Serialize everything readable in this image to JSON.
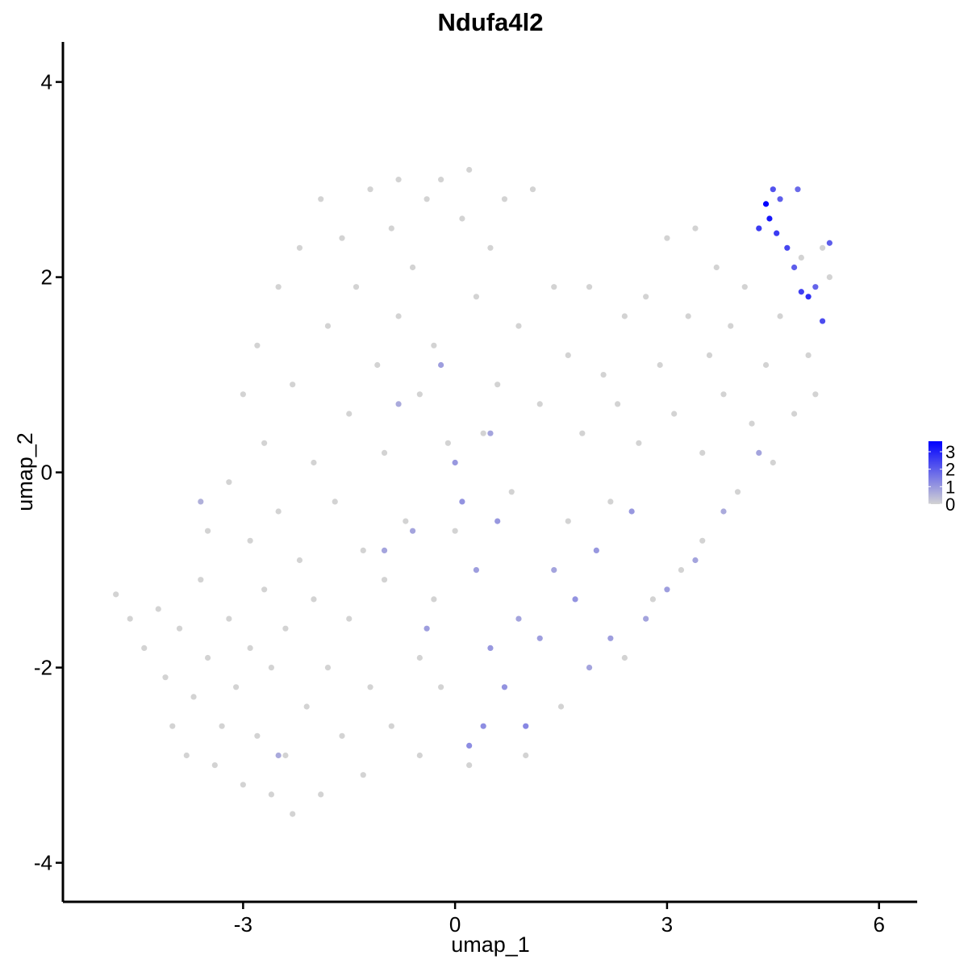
{
  "chart_data": {
    "type": "scatter",
    "title": "Ndufa4l2",
    "xlabel": "umap_1",
    "ylabel": "umap_2",
    "xlim": [
      -5.55,
      6.54
    ],
    "ylim": [
      -4.4,
      4.41
    ],
    "xticks": [
      -3,
      0,
      3,
      6
    ],
    "yticks": [
      -4,
      -2,
      0,
      2,
      4
    ],
    "colorbar": {
      "lim": [
        0,
        3.6
      ],
      "ticks": [
        0,
        1,
        2,
        3
      ],
      "low_color": "#d3d3d3",
      "high_color": "#0000ff"
    },
    "x": [
      -4.8,
      -4.6,
      -4.4,
      -4.2,
      -4.1,
      -4.0,
      -3.9,
      -3.8,
      -3.7,
      -3.6,
      -3.5,
      -3.5,
      -3.4,
      -3.3,
      -3.2,
      -3.2,
      -3.1,
      -3.0,
      -3.0,
      -2.9,
      -2.9,
      -2.8,
      -2.8,
      -2.7,
      -2.7,
      -2.6,
      -2.6,
      -2.5,
      -2.5,
      -2.4,
      -2.4,
      -2.3,
      -2.3,
      -2.2,
      -2.2,
      -2.1,
      -2.0,
      -2.0,
      -1.9,
      -1.9,
      -1.8,
      -1.8,
      -1.7,
      -1.6,
      -1.6,
      -1.5,
      -1.5,
      -1.4,
      -1.3,
      -1.3,
      -1.2,
      -1.2,
      -1.1,
      -1.0,
      -1.0,
      -0.9,
      -0.9,
      -0.8,
      -0.8,
      -0.7,
      -0.6,
      -0.5,
      -0.5,
      -0.4,
      -0.3,
      -0.2,
      -0.1,
      0.1,
      0.2,
      0.3,
      0.5,
      0.6,
      0.7,
      0.9,
      1.1,
      1.2,
      1.4,
      1.6,
      1.8,
      1.9,
      2.1,
      2.3,
      2.4,
      2.6,
      2.7,
      2.9,
      3.0,
      3.1,
      3.3,
      3.4,
      3.5,
      3.6,
      3.7,
      3.8,
      3.9,
      4.0,
      4.1,
      4.2,
      4.3,
      4.4,
      4.5,
      4.6,
      4.8,
      4.9,
      5.0,
      5.1,
      5.2,
      5.3,
      3.2,
      3.5,
      2.8,
      2.4,
      1.5,
      1.0,
      0.2,
      -0.5,
      -0.3,
      0.0,
      0.8,
      1.6,
      2.2,
      0.4,
      -0.2,
      0.0,
      0.1,
      0.3,
      0.5,
      0.4,
      0.7,
      0.9,
      1.0,
      1.2,
      1.4,
      1.7,
      2.0,
      2.2,
      2.5,
      2.7,
      3.0,
      3.4,
      3.8,
      4.3,
      -0.4,
      -0.6,
      -1.0,
      -0.8,
      -0.2,
      0.6,
      1.9,
      0.2,
      -2.5,
      -3.6,
      0.5,
      4.4,
      4.45,
      4.5,
      4.6,
      4.7,
      4.8,
      4.9,
      5.0,
      5.2,
      5.3,
      4.3,
      4.55,
      4.85,
      5.1
    ],
    "values": [
      -1.25,
      -1.5,
      -1.8,
      -1.4,
      -2.1,
      -2.6,
      -1.6,
      -2.9,
      -2.3,
      -1.1,
      -0.6,
      -1.9,
      -3.0,
      -2.6,
      -0.1,
      -1.5,
      -2.2,
      0.8,
      -3.2,
      -0.7,
      -1.8,
      1.3,
      -2.7,
      0.3,
      -1.2,
      -3.3,
      -2.0,
      1.9,
      -0.4,
      -1.6,
      -2.9,
      0.9,
      -3.5,
      2.3,
      -0.9,
      -2.4,
      0.1,
      -1.3,
      2.8,
      -3.3,
      1.5,
      -2.0,
      -0.3,
      2.4,
      -2.7,
      0.6,
      -1.5,
      1.9,
      -0.8,
      -3.1,
      2.9,
      -2.2,
      1.1,
      -1.1,
      0.2,
      2.5,
      -2.6,
      3.0,
      1.6,
      -0.5,
      2.1,
      0.8,
      -1.9,
      2.8,
      1.3,
      3.0,
      0.3,
      2.6,
      3.1,
      1.8,
      2.3,
      0.9,
      2.8,
      1.5,
      2.9,
      0.7,
      1.9,
      1.2,
      0.4,
      1.9,
      1.0,
      0.7,
      1.6,
      0.3,
      1.8,
      1.1,
      2.4,
      0.6,
      1.6,
      2.5,
      0.2,
      1.2,
      2.1,
      0.8,
      1.5,
      -0.2,
      1.9,
      0.5,
      2.5,
      1.1,
      0.1,
      1.6,
      0.6,
      2.2,
      1.2,
      0.8,
      2.3,
      2.0,
      -1.0,
      -0.7,
      -1.3,
      -1.9,
      -2.4,
      -2.9,
      -3.0,
      -2.9,
      -1.3,
      -0.6,
      -0.2,
      -0.5,
      -0.3,
      0.4,
      -2.2,
      0.1,
      -0.3,
      -1.0,
      -1.8,
      -2.6,
      -2.2,
      -1.5,
      -2.6,
      -1.7,
      -1.0,
      -1.3,
      -0.8,
      -1.7,
      -0.4,
      -1.5,
      -1.2,
      -0.9,
      -0.4,
      0.2,
      -1.6,
      -0.6,
      -0.8,
      0.7,
      1.1,
      -0.5,
      -2.0,
      -2.8,
      -2.9,
      -0.3,
      0.4,
      2.75,
      2.6,
      2.9,
      2.8,
      2.3,
      2.1,
      1.85,
      1.8,
      1.55,
      2.35,
      2.5,
      2.45,
      2.9,
      1.9
    ],
    "expression": [
      0,
      0,
      0,
      0,
      0,
      0,
      0,
      0,
      0,
      0,
      0,
      0,
      0,
      0,
      0,
      0,
      0,
      0,
      0,
      0,
      0,
      0,
      0,
      0,
      0,
      0,
      0,
      0,
      0,
      0,
      0,
      0,
      0,
      0,
      0,
      0,
      0,
      0,
      0,
      0,
      0,
      0,
      0,
      0,
      0,
      0,
      0,
      0,
      0,
      0,
      0,
      0,
      0,
      0,
      0,
      0,
      0,
      0,
      0,
      0,
      0,
      0,
      0,
      0,
      0,
      0,
      0,
      0,
      0,
      0,
      0,
      0,
      0,
      0,
      0,
      0,
      0,
      0,
      0,
      0,
      0,
      0,
      0,
      0,
      0,
      0,
      0,
      0,
      0,
      0,
      0,
      0,
      0,
      0,
      0,
      0,
      0,
      0,
      0,
      0,
      0,
      0,
      0,
      0,
      0,
      0,
      0,
      0,
      0,
      0,
      0,
      0,
      0,
      0,
      0,
      0,
      0,
      0,
      0,
      0,
      0,
      0,
      0,
      1.0,
      1.1,
      0.9,
      1.0,
      1.2,
      1.1,
      0.8,
      1.3,
      0.9,
      0.8,
      1.1,
      1.0,
      0.9,
      1.0,
      0.8,
      0.9,
      0.8,
      0.7,
      0.8,
      0.9,
      0.8,
      0.8,
      0.7,
      0.9,
      1.0,
      0.8,
      1.2,
      0.7,
      0.6,
      0.8,
      3.6,
      3.2,
      2.2,
      2.0,
      2.4,
      2.0,
      2.5,
      2.8,
      2.3,
      2.0,
      2.6,
      2.6,
      1.8,
      1.9
    ]
  }
}
